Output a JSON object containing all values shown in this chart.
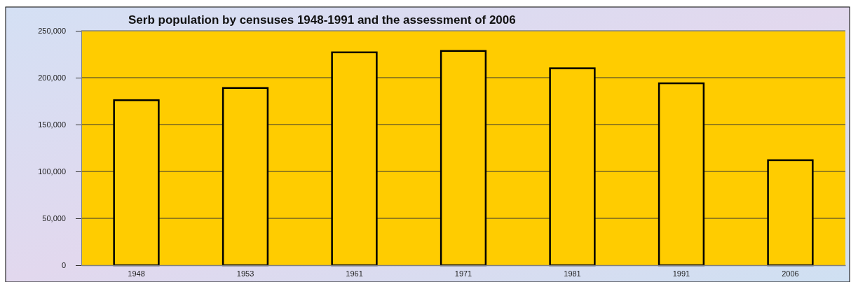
{
  "chart_data": {
    "type": "bar",
    "title": "Serb population by censuses 1948-1991 and the assessment of 2006",
    "categories": [
      "1948",
      "1953",
      "1961",
      "1971",
      "1981",
      "1991",
      "2006"
    ],
    "values": [
      176000,
      189000,
      227000,
      228500,
      210000,
      194000,
      112000
    ],
    "color": "#ffcc00",
    "ylim": [
      0,
      250000
    ],
    "yticks": [
      {
        "value": 0,
        "label": "0"
      },
      {
        "value": 50000,
        "label": "50,000"
      },
      {
        "value": 100000,
        "label": "100,000"
      },
      {
        "value": 150000,
        "label": "150,000"
      },
      {
        "value": 200000,
        "label": "200,000"
      },
      {
        "value": 250000,
        "label": "250,000"
      }
    ],
    "grid": true
  }
}
